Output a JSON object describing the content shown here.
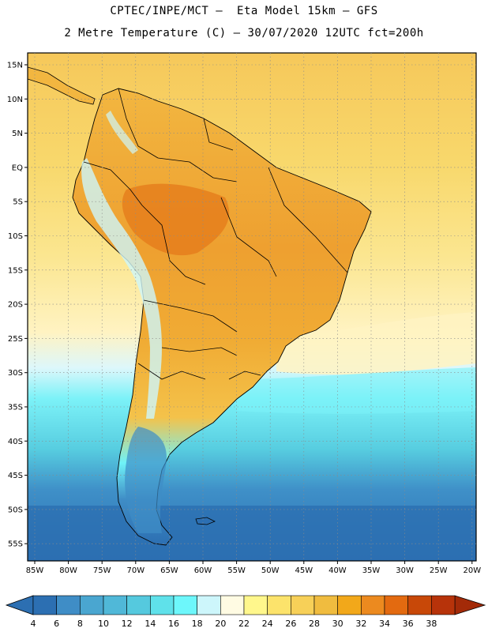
{
  "header": {
    "line1": "CPTEC/INPE/MCT –  Eta Model 15km – GFS",
    "line2": "2 Metre Temperature (C) – 30/07/2020 12UTC fct=200h"
  },
  "map": {
    "lat_labels": [
      "15N",
      "10N",
      "5N",
      "EQ",
      "5S",
      "10S",
      "15S",
      "20S",
      "25S",
      "30S",
      "35S",
      "40S",
      "45S",
      "50S",
      "55S"
    ],
    "lon_labels": [
      "85W",
      "80W",
      "75W",
      "70W",
      "65W",
      "60W",
      "55W",
      "50W",
      "45W",
      "40W",
      "35W",
      "30W",
      "25W",
      "20W"
    ]
  },
  "colorbar": {
    "colors": [
      "#2c6fb2",
      "#3f8dc6",
      "#4aa6d0",
      "#50b8d8",
      "#55c9de",
      "#5fe1ea",
      "#6df7fb",
      "#cdf6fb",
      "#fffbe3",
      "#fff78c",
      "#fce36b",
      "#f7d058",
      "#f0bc3f",
      "#f2a81a",
      "#ec8a1f",
      "#e36a10",
      "#c84808",
      "#b7330a"
    ],
    "labels": [
      "4",
      "6",
      "8",
      "10",
      "12",
      "14",
      "16",
      "18",
      "20",
      "22",
      "24",
      "26",
      "28",
      "30",
      "32",
      "34",
      "36",
      "38"
    ]
  }
}
